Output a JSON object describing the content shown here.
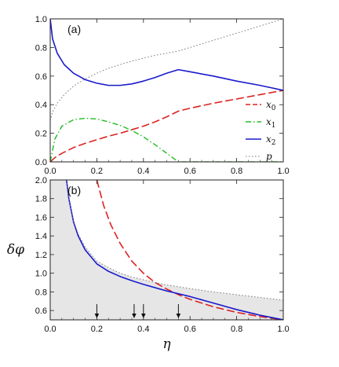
{
  "chart_data": [
    {
      "type": "line",
      "panel_label": "(a)",
      "xlim": [
        0.0,
        1.0
      ],
      "ylim": [
        0.0,
        1.0
      ],
      "xticks": [
        "0.0",
        "0.2",
        "0.4",
        "0.6",
        "0.8",
        "1.0"
      ],
      "yticks": [
        "0.0",
        "0.2",
        "0.4",
        "0.6",
        "0.8",
        "1.0"
      ],
      "legend": {
        "placement": "right",
        "entries": [
          "x0",
          "x1",
          "x2",
          "p"
        ]
      },
      "series": [
        {
          "name": "x0",
          "color": "#dd2222",
          "style": "dashed",
          "x": [
            0.0,
            0.02,
            0.05,
            0.1,
            0.15,
            0.2,
            0.25,
            0.3,
            0.35,
            0.4,
            0.45,
            0.5,
            0.55,
            0.6,
            0.7,
            0.8,
            0.9,
            1.0
          ],
          "y": [
            0.0,
            0.03,
            0.06,
            0.1,
            0.13,
            0.155,
            0.18,
            0.2,
            0.225,
            0.25,
            0.28,
            0.315,
            0.355,
            0.375,
            0.41,
            0.44,
            0.47,
            0.5
          ]
        },
        {
          "name": "x1",
          "color": "#22bb22",
          "style": "dashdot",
          "x": [
            0.0,
            0.02,
            0.05,
            0.1,
            0.15,
            0.2,
            0.25,
            0.3,
            0.35,
            0.4,
            0.45,
            0.5,
            0.55,
            0.6,
            0.7,
            0.8,
            0.9,
            1.0
          ],
          "y": [
            0.0,
            0.16,
            0.25,
            0.295,
            0.305,
            0.3,
            0.28,
            0.255,
            0.22,
            0.175,
            0.12,
            0.06,
            0.0,
            0.0,
            0.0,
            0.0,
            0.0,
            0.0
          ]
        },
        {
          "name": "x2",
          "color": "#1a1acc",
          "style": "solid",
          "x": [
            0.0,
            0.01,
            0.03,
            0.06,
            0.1,
            0.15,
            0.2,
            0.25,
            0.3,
            0.35,
            0.4,
            0.45,
            0.5,
            0.55,
            0.6,
            0.7,
            0.8,
            0.9,
            1.0
          ],
          "y": [
            1.0,
            0.86,
            0.76,
            0.68,
            0.62,
            0.575,
            0.55,
            0.535,
            0.535,
            0.545,
            0.565,
            0.59,
            0.62,
            0.645,
            0.63,
            0.6,
            0.565,
            0.535,
            0.5
          ]
        },
        {
          "name": "p",
          "color": "#777777",
          "style": "dotted",
          "x": [
            0.0,
            0.01,
            0.03,
            0.06,
            0.1,
            0.15,
            0.2,
            0.25,
            0.3,
            0.35,
            0.4,
            0.45,
            0.5,
            0.55,
            0.6,
            0.7,
            0.8,
            0.9,
            1.0
          ],
          "y": [
            0.29,
            0.35,
            0.41,
            0.47,
            0.53,
            0.58,
            0.62,
            0.655,
            0.68,
            0.705,
            0.725,
            0.745,
            0.76,
            0.775,
            0.8,
            0.85,
            0.9,
            0.95,
            1.0
          ]
        }
      ]
    },
    {
      "type": "line",
      "panel_label": "(b)",
      "xlabel": "η",
      "ylabel": "δφ",
      "xlim": [
        0.0,
        1.0
      ],
      "ylim": [
        0.5,
        2.0
      ],
      "xticks": [
        "0.0",
        "0.2",
        "0.4",
        "0.6",
        "0.8",
        "1.0"
      ],
      "yticks": [
        "0.6",
        "0.8",
        "1.0",
        "1.2",
        "1.4",
        "1.6",
        "1.8",
        "2.0"
      ],
      "shaded_region": "below dotted curve",
      "arrows_x": [
        0.2,
        0.36,
        0.4,
        0.55
      ],
      "series": [
        {
          "color": "#dd2222",
          "style": "dashed",
          "x": [
            0.2,
            0.23,
            0.26,
            0.3,
            0.35,
            0.4,
            0.45,
            0.5,
            0.55,
            0.6,
            0.7,
            0.8,
            0.9,
            1.0
          ],
          "y": [
            2.0,
            1.72,
            1.52,
            1.32,
            1.13,
            1.0,
            0.9,
            0.83,
            0.77,
            0.72,
            0.64,
            0.58,
            0.535,
            0.5
          ]
        },
        {
          "color": "#1a1acc",
          "style": "solid",
          "x": [
            0.07,
            0.08,
            0.1,
            0.12,
            0.15,
            0.2,
            0.25,
            0.3,
            0.35,
            0.4,
            0.45,
            0.5,
            0.55,
            0.6,
            0.7,
            0.8,
            0.9,
            1.0
          ],
          "y": [
            2.0,
            1.8,
            1.55,
            1.4,
            1.25,
            1.1,
            1.02,
            0.965,
            0.92,
            0.88,
            0.845,
            0.81,
            0.78,
            0.75,
            0.68,
            0.61,
            0.55,
            0.5
          ]
        },
        {
          "color": "#777777",
          "style": "dotted",
          "x": [
            0.07,
            0.08,
            0.1,
            0.12,
            0.15,
            0.2,
            0.25,
            0.3,
            0.35,
            0.4,
            0.45,
            0.5,
            0.55,
            0.6,
            0.7,
            0.8,
            0.9,
            1.0
          ],
          "y": [
            2.0,
            1.8,
            1.56,
            1.42,
            1.28,
            1.13,
            1.06,
            1.0,
            0.96,
            0.93,
            0.9,
            0.875,
            0.855,
            0.835,
            0.8,
            0.77,
            0.74,
            0.71
          ]
        }
      ]
    }
  ]
}
